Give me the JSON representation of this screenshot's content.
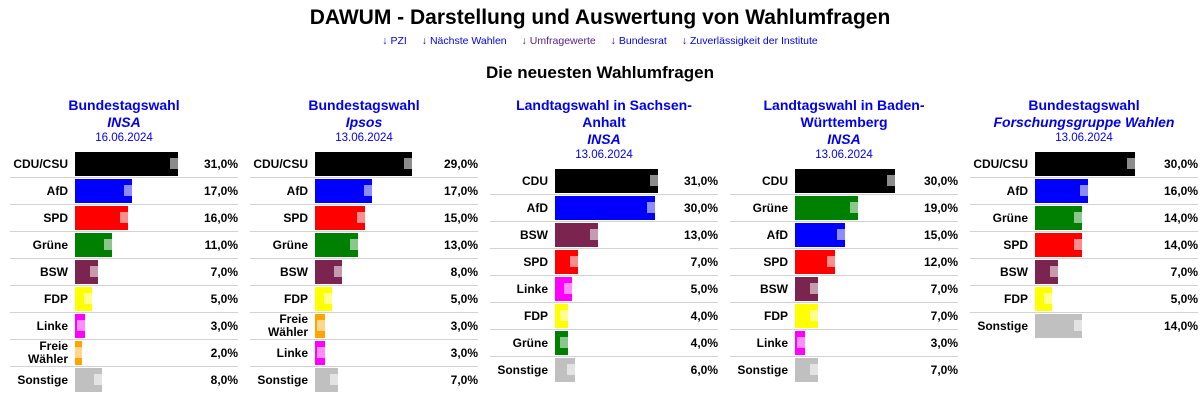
{
  "header": {
    "title": "DAWUM - Darstellung und Auswertung von Wahlumfragen",
    "nav": [
      {
        "arrow": "↓",
        "label": "PZI",
        "visited": false
      },
      {
        "arrow": "↓",
        "label": "Nächste Wahlen",
        "visited": false
      },
      {
        "arrow": "↓",
        "label": "Umfragewerte",
        "visited": true
      },
      {
        "arrow": "↓",
        "label": "Bundesrat",
        "visited": false
      },
      {
        "arrow": "↓",
        "label": "Zuverlässigkeit der Institute",
        "visited": false
      }
    ],
    "section_title": "Die neuesten Wahlumfragen"
  },
  "colors": {
    "CDU/CSU": "#000000",
    "CDU": "#000000",
    "AfD": "#0000ff",
    "SPD": "#ff0000",
    "Grüne": "#008000",
    "BSW": "#7b2450",
    "FDP": "#ffff00",
    "Linke": "#ff00ff",
    "Freie Wähler": "#ffa500",
    "Sonstige": "#c0c0c0",
    "link": "#0000ee"
  },
  "chart_data": [
    {
      "type": "bar",
      "title": "Bundestagswahl",
      "institute": "INSA",
      "date": "16.06.2024",
      "categories": [
        "CDU/CSU",
        "AfD",
        "SPD",
        "Grüne",
        "BSW",
        "FDP",
        "Linke",
        "Freie Wähler",
        "Sonstige"
      ],
      "labels": [
        "31,0%",
        "17,0%",
        "16,0%",
        "11,0%",
        "7,0%",
        "5,0%",
        "3,0%",
        "2,0%",
        "8,0%"
      ],
      "values": [
        31,
        17,
        16,
        11,
        7,
        5,
        3,
        2,
        8
      ],
      "xlim": [
        0,
        35
      ]
    },
    {
      "type": "bar",
      "title": "Bundestagswahl",
      "institute": "Ipsos",
      "date": "13.06.2024",
      "categories": [
        "CDU/CSU",
        "AfD",
        "SPD",
        "Grüne",
        "BSW",
        "FDP",
        "Freie Wähler",
        "Linke",
        "Sonstige"
      ],
      "labels": [
        "29,0%",
        "17,0%",
        "15,0%",
        "13,0%",
        "8,0%",
        "5,0%",
        "3,0%",
        "3,0%",
        "7,0%"
      ],
      "values": [
        29,
        17,
        15,
        13,
        8,
        5,
        3,
        3,
        7
      ],
      "xlim": [
        0,
        35
      ]
    },
    {
      "type": "bar",
      "title": "Landtagswahl in Sachsen-Anhalt",
      "institute": "INSA",
      "date": "13.06.2024",
      "categories": [
        "CDU",
        "AfD",
        "BSW",
        "SPD",
        "Linke",
        "FDP",
        "Grüne",
        "Sonstige"
      ],
      "labels": [
        "31,0%",
        "30,0%",
        "13,0%",
        "7,0%",
        "5,0%",
        "4,0%",
        "4,0%",
        "6,0%"
      ],
      "values": [
        31,
        30,
        13,
        7,
        5,
        4,
        4,
        6
      ],
      "xlim": [
        0,
        35
      ]
    },
    {
      "type": "bar",
      "title": "Landtagswahl in Baden-Württemberg",
      "institute": "INSA",
      "date": "13.06.2024",
      "categories": [
        "CDU",
        "Grüne",
        "AfD",
        "SPD",
        "BSW",
        "FDP",
        "Linke",
        "Sonstige"
      ],
      "labels": [
        "30,0%",
        "19,0%",
        "15,0%",
        "12,0%",
        "7,0%",
        "7,0%",
        "3,0%",
        "7,0%"
      ],
      "values": [
        30,
        19,
        15,
        12,
        7,
        7,
        3,
        7
      ],
      "xlim": [
        0,
        35
      ]
    },
    {
      "type": "bar",
      "title": "Bundestagswahl",
      "institute": "Forschungsgruppe Wahlen",
      "date": "13.06.2024",
      "categories": [
        "CDU/CSU",
        "AfD",
        "Grüne",
        "SPD",
        "BSW",
        "FDP",
        "Sonstige"
      ],
      "labels": [
        "30,0%",
        "16,0%",
        "14,0%",
        "14,0%",
        "7,0%",
        "5,0%",
        "14,0%"
      ],
      "values": [
        30,
        16,
        14,
        14,
        7,
        5,
        14
      ],
      "xlim": [
        0,
        35
      ]
    }
  ]
}
